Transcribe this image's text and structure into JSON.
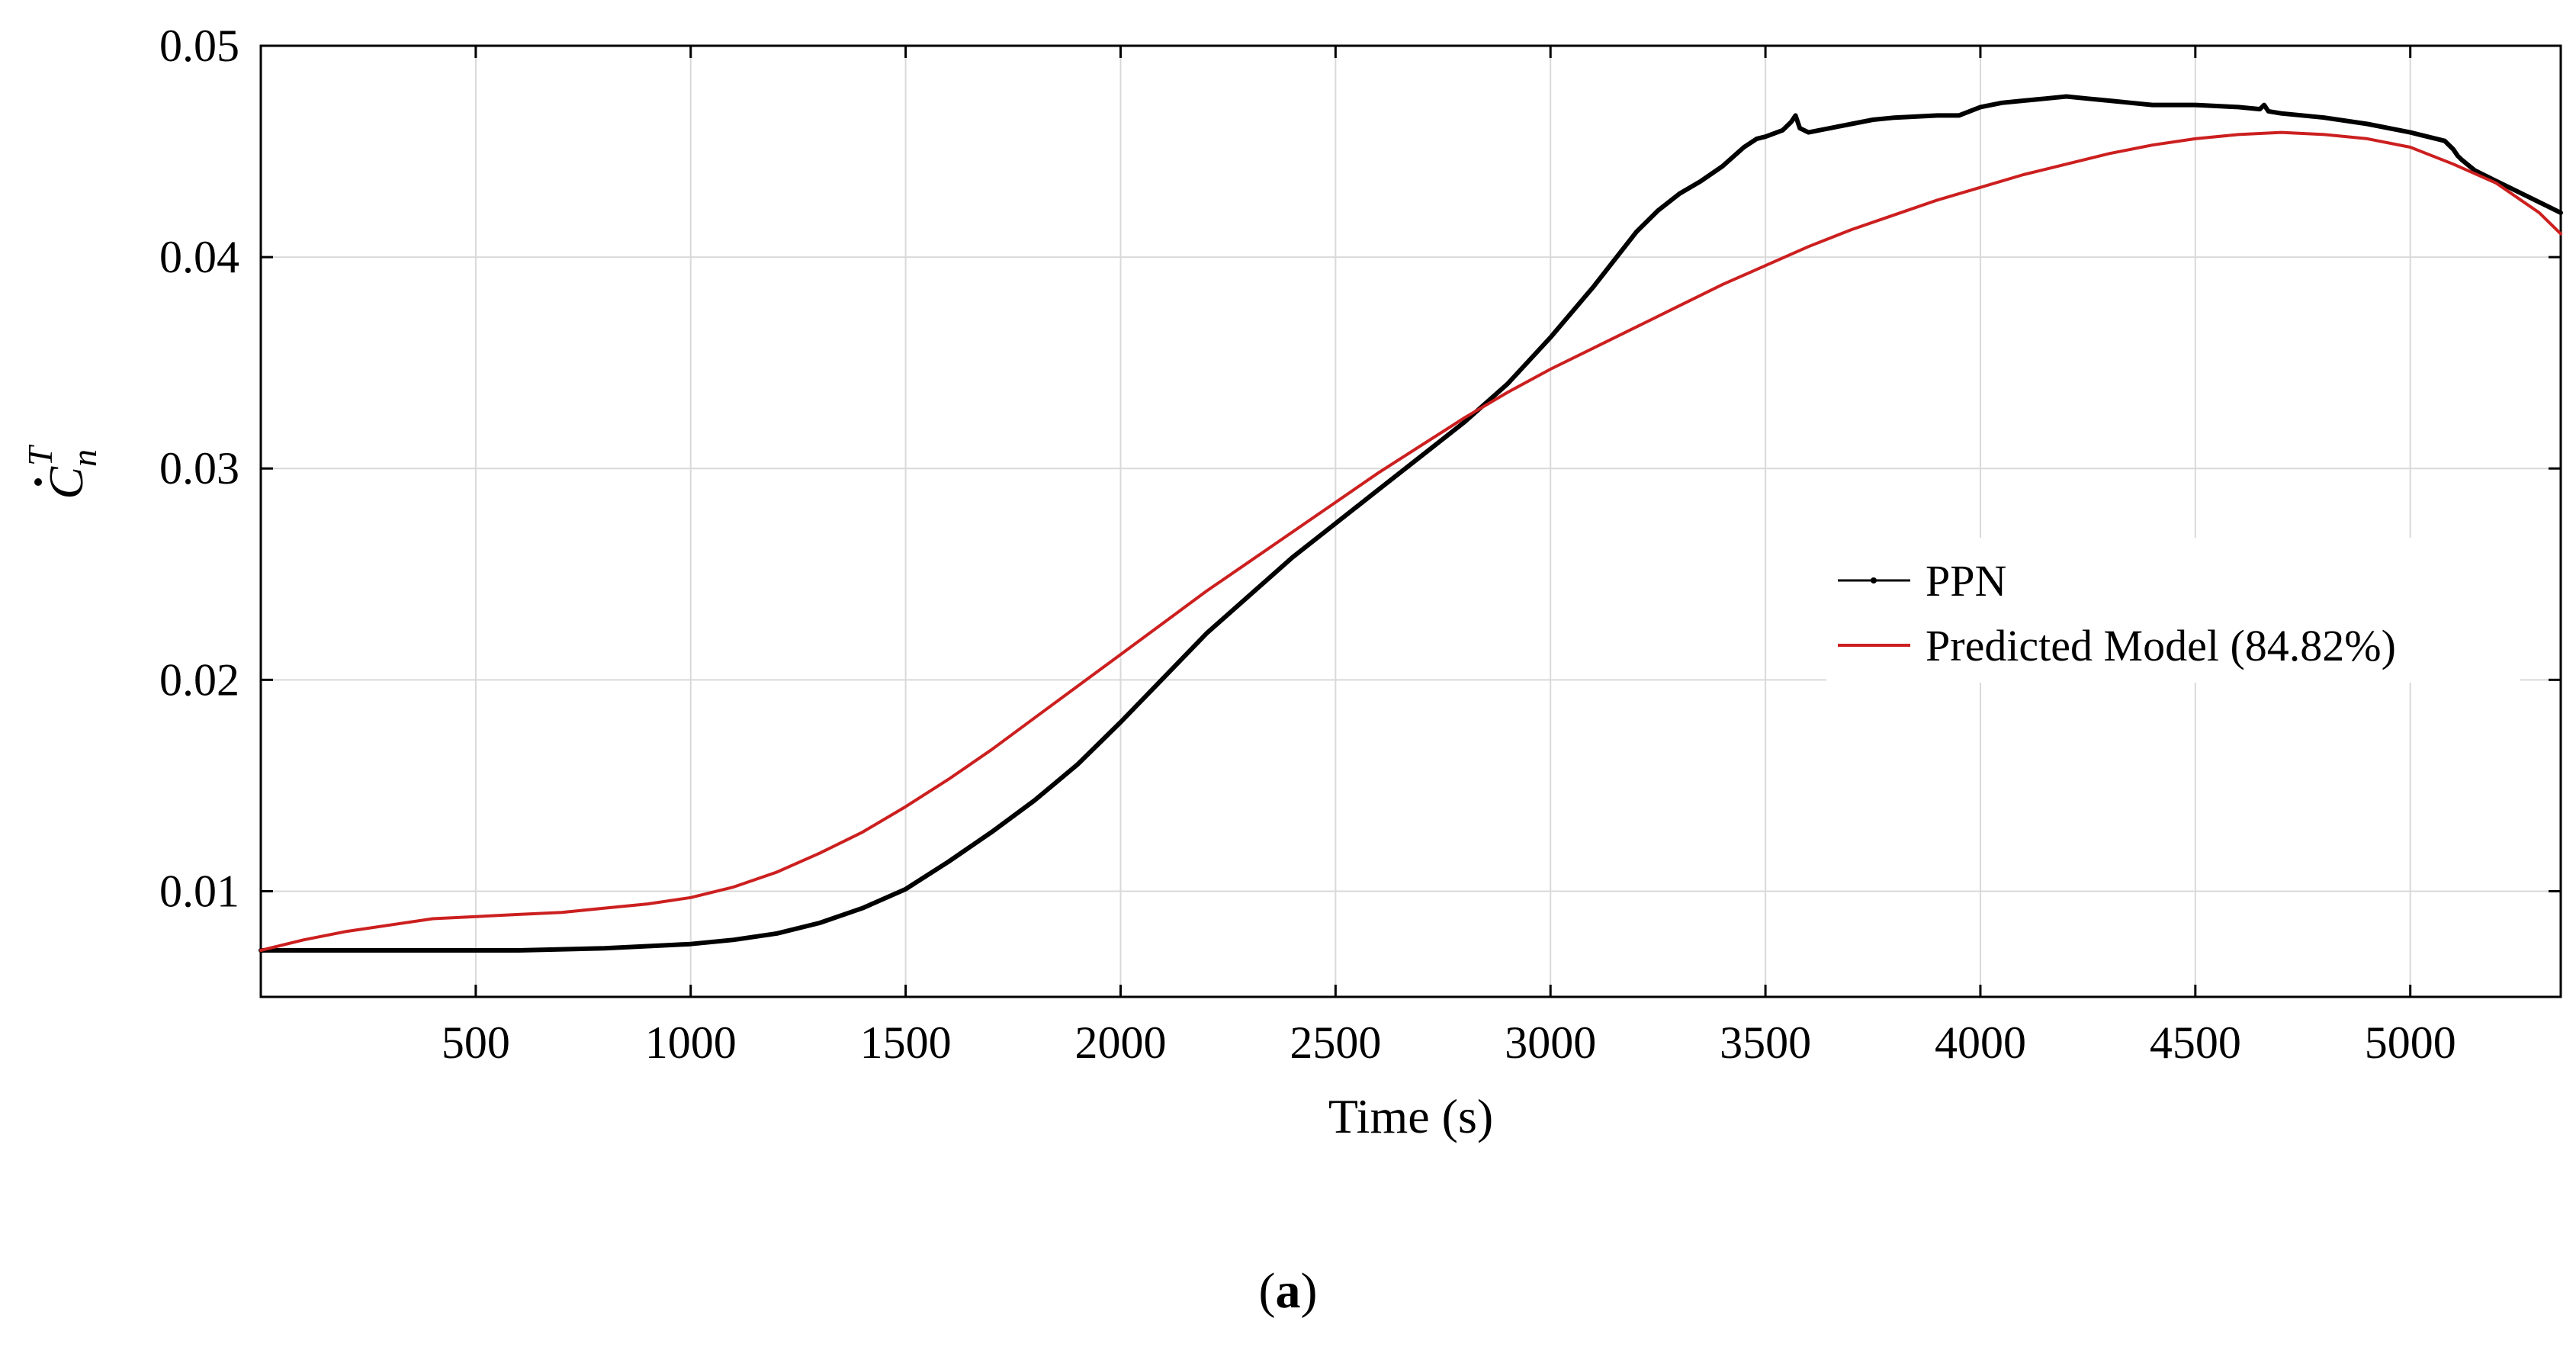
{
  "chart_data": {
    "type": "line",
    "title": "",
    "xlabel": "Time (s)",
    "ylabel": "Ċ_n^T",
    "ylabel_parts": {
      "base": "C",
      "sub": "n",
      "sup": "T"
    },
    "xlim": [
      0,
      5350
    ],
    "ylim": [
      0.005,
      0.05
    ],
    "xticks": [
      500,
      1000,
      1500,
      2000,
      2500,
      3000,
      3500,
      4000,
      4500,
      5000
    ],
    "xtick_labels": [
      "500",
      "1000",
      "1500",
      "2000",
      "2500",
      "3000",
      "3500",
      "4000",
      "4500",
      "5000"
    ],
    "yticks": [
      0.01,
      0.02,
      0.03,
      0.04,
      0.05
    ],
    "ytick_labels": [
      "0.01",
      "0.02",
      "0.03",
      "0.04",
      "0.05"
    ],
    "grid": true,
    "legend_position": "right",
    "series": [
      {
        "name": "PPN",
        "color": "#000000",
        "x": [
          0,
          200,
          400,
          600,
          800,
          1000,
          1100,
          1200,
          1300,
          1400,
          1500,
          1600,
          1700,
          1800,
          1900,
          2000,
          2100,
          2200,
          2300,
          2400,
          2500,
          2600,
          2700,
          2800,
          2900,
          3000,
          3100,
          3200,
          3250,
          3300,
          3350,
          3400,
          3450,
          3480,
          3500,
          3540,
          3560,
          3570,
          3580,
          3600,
          3650,
          3700,
          3750,
          3800,
          3900,
          3950,
          4000,
          4050,
          4100,
          4150,
          4200,
          4250,
          4300,
          4350,
          4400,
          4500,
          4600,
          4650,
          4660,
          4670,
          4700,
          4800,
          4900,
          5000,
          5080,
          5100,
          5110,
          5120,
          5150,
          5200,
          5250,
          5300,
          5350
        ],
        "values": [
          0.0072,
          0.0072,
          0.0072,
          0.0072,
          0.0073,
          0.0075,
          0.0077,
          0.008,
          0.0085,
          0.0092,
          0.0101,
          0.0114,
          0.0128,
          0.0143,
          0.016,
          0.018,
          0.0201,
          0.0222,
          0.024,
          0.0258,
          0.0274,
          0.029,
          0.0306,
          0.0322,
          0.034,
          0.0362,
          0.0386,
          0.0412,
          0.0422,
          0.043,
          0.0436,
          0.0443,
          0.0452,
          0.0456,
          0.0457,
          0.046,
          0.0464,
          0.0467,
          0.0461,
          0.0459,
          0.0461,
          0.0463,
          0.0465,
          0.0466,
          0.0467,
          0.0467,
          0.0471,
          0.0473,
          0.0474,
          0.0475,
          0.0476,
          0.0475,
          0.0474,
          0.0473,
          0.0472,
          0.0472,
          0.0471,
          0.047,
          0.0472,
          0.0469,
          0.0468,
          0.0466,
          0.0463,
          0.0459,
          0.0455,
          0.0451,
          0.0448,
          0.0446,
          0.0441,
          0.0436,
          0.0431,
          0.0426,
          0.0421
        ]
      },
      {
        "name": "Predicted Model (84.82%)",
        "color": "#cc1f1f",
        "x": [
          0,
          100,
          200,
          300,
          400,
          500,
          600,
          700,
          800,
          900,
          1000,
          1100,
          1200,
          1300,
          1400,
          1500,
          1600,
          1700,
          1800,
          1900,
          2000,
          2100,
          2200,
          2300,
          2400,
          2500,
          2600,
          2700,
          2800,
          2900,
          3000,
          3100,
          3200,
          3300,
          3400,
          3500,
          3600,
          3700,
          3800,
          3900,
          4000,
          4100,
          4200,
          4300,
          4400,
          4500,
          4600,
          4700,
          4800,
          4900,
          5000,
          5100,
          5200,
          5300,
          5350
        ],
        "values": [
          0.0072,
          0.0077,
          0.0081,
          0.0084,
          0.0087,
          0.0088,
          0.0089,
          0.009,
          0.0092,
          0.0094,
          0.0097,
          0.0102,
          0.0109,
          0.0118,
          0.0128,
          0.014,
          0.0153,
          0.0167,
          0.0182,
          0.0197,
          0.0212,
          0.0227,
          0.0242,
          0.0256,
          0.027,
          0.0284,
          0.0298,
          0.0311,
          0.0324,
          0.0336,
          0.0347,
          0.0357,
          0.0367,
          0.0377,
          0.0387,
          0.0396,
          0.0405,
          0.0413,
          0.042,
          0.0427,
          0.0433,
          0.0439,
          0.0444,
          0.0449,
          0.0453,
          0.0456,
          0.0458,
          0.0459,
          0.0458,
          0.0456,
          0.0452,
          0.0444,
          0.0435,
          0.0421,
          0.0411
        ]
      }
    ]
  },
  "caption": {
    "open": "(",
    "letter": "a",
    "close": ")"
  }
}
